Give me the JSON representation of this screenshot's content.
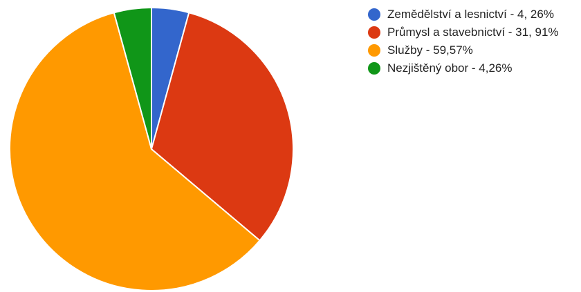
{
  "chart_data": {
    "type": "pie",
    "slices": [
      {
        "label": "Zemědělství a lesnictví - 4, 26%",
        "value": 4.26,
        "color": "#3366cc"
      },
      {
        "label": "Průmysl a stavebnictví - 31, 91%",
        "value": 31.91,
        "color": "#dc3912"
      },
      {
        "label": "Služby - 59,57%",
        "value": 59.57,
        "color": "#ff9900"
      },
      {
        "label": "Nezjištěný obor - 4,26%",
        "value": 4.26,
        "color": "#109618"
      }
    ],
    "legend_position": "right"
  }
}
